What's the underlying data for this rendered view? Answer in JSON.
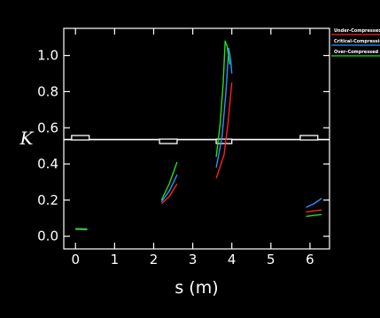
{
  "chart_data": {
    "type": "line",
    "xlabel": "s (m)",
    "ylabel": "K",
    "xlim": [
      -0.3,
      6.5
    ],
    "ylim": [
      -0.07,
      1.15
    ],
    "xticks": [
      0,
      1,
      2,
      3,
      4,
      5,
      6
    ],
    "yticks": [
      0.0,
      0.2,
      0.4,
      0.6,
      0.8,
      1.0
    ],
    "xtick_labels": [
      "0",
      "1",
      "2",
      "3",
      "4",
      "5",
      "6"
    ],
    "ytick_labels": [
      "0.0",
      "0.2",
      "0.4",
      "0.6",
      "0.8",
      "1.0"
    ],
    "grid": false,
    "legend_position": "top-right",
    "beamline_level": 0.535,
    "elements": [
      {
        "x0": -0.1,
        "x1": 0.35,
        "y": 0.545
      },
      {
        "x0": 2.15,
        "x1": 2.6,
        "y": 0.525
      },
      {
        "x0": 3.6,
        "x1": 4.0,
        "y": 0.525
      },
      {
        "x0": 5.75,
        "x1": 6.2,
        "y": 0.545
      }
    ],
    "series": [
      {
        "name": "Under-Compressed",
        "color": "#ff2020",
        "segments": [
          [
            [
              0.0,
              0.038
            ],
            [
              0.3,
              0.036
            ]
          ],
          [
            [
              2.2,
              0.18
            ],
            [
              2.4,
              0.22
            ],
            [
              2.6,
              0.29
            ]
          ],
          [
            [
              3.6,
              0.32
            ],
            [
              3.8,
              0.45
            ],
            [
              3.9,
              0.62
            ],
            [
              4.0,
              0.85
            ]
          ],
          [
            [
              5.9,
              0.135
            ],
            [
              6.1,
              0.14
            ],
            [
              6.3,
              0.145
            ]
          ]
        ]
      },
      {
        "name": "Critical-Compression",
        "color": "#3090ff",
        "segments": [
          [
            [
              0.0,
              0.04
            ],
            [
              0.3,
              0.038
            ]
          ],
          [
            [
              2.2,
              0.19
            ],
            [
              2.4,
              0.25
            ],
            [
              2.6,
              0.34
            ]
          ],
          [
            [
              3.6,
              0.38
            ],
            [
              3.75,
              0.55
            ],
            [
              3.85,
              0.8
            ],
            [
              3.92,
              1.04
            ],
            [
              3.97,
              0.98
            ],
            [
              4.0,
              0.9
            ]
          ],
          [
            [
              5.9,
              0.16
            ],
            [
              6.1,
              0.18
            ],
            [
              6.3,
              0.21
            ]
          ]
        ]
      },
      {
        "name": "Over-Compressed",
        "color": "#20e020",
        "segments": [
          [
            [
              0.0,
              0.042
            ],
            [
              0.3,
              0.04
            ]
          ],
          [
            [
              2.2,
              0.2
            ],
            [
              2.4,
              0.29
            ],
            [
              2.6,
              0.41
            ]
          ],
          [
            [
              3.6,
              0.44
            ],
            [
              3.7,
              0.62
            ],
            [
              3.78,
              0.85
            ],
            [
              3.83,
              1.08
            ],
            [
              3.88,
              1.05
            ],
            [
              3.95,
              0.95
            ]
          ],
          [
            [
              5.9,
              0.11
            ],
            [
              6.1,
              0.115
            ],
            [
              6.3,
              0.12
            ]
          ]
        ]
      }
    ]
  }
}
